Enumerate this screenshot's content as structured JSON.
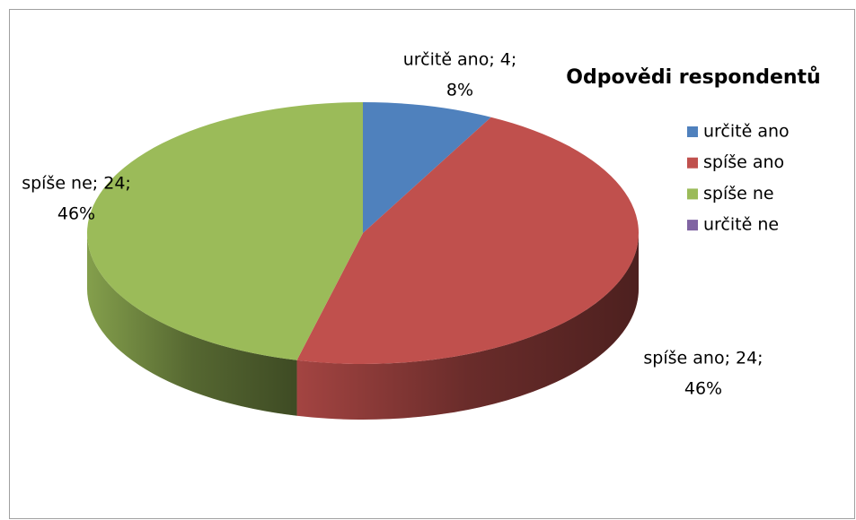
{
  "chart_data": {
    "type": "pie3d",
    "title": "Odpovědi respondentů",
    "categories": [
      "určitě ano",
      "spíše ano",
      "spíše ne",
      "určitě ne"
    ],
    "values": [
      4,
      24,
      24,
      0
    ],
    "value_labels": [
      [
        "určitě ano; 4;",
        "8%"
      ],
      [
        "spíše ano; 24;",
        "46%"
      ],
      [
        "spíše ne; 24;",
        "46%"
      ],
      null
    ],
    "colors": [
      "#4f81bd",
      "#c0504d",
      "#9bbb59",
      "#8064a2"
    ],
    "legend": "right"
  }
}
